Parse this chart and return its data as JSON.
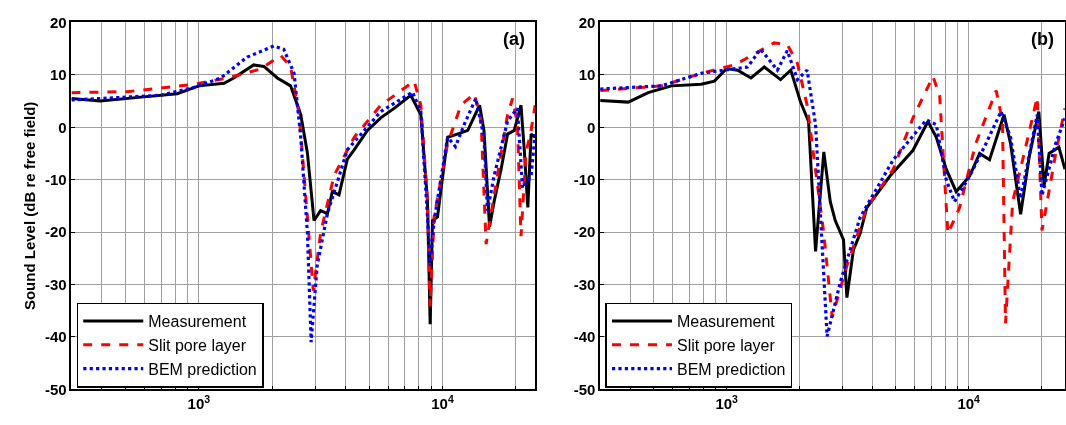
{
  "chart_data": [
    {
      "type": "line",
      "ylabel": "Sound Level (dB re free field)",
      "annotations": [
        "(a)"
      ],
      "xlim": [
        300,
        24000
      ],
      "log": "x",
      "ylim": [
        -50,
        20
      ],
      "yticks": [
        -50,
        -40,
        -30,
        -20,
        -10,
        0,
        10,
        20
      ],
      "xticks": [
        {
          "value": 400,
          "label": null
        },
        {
          "value": 500,
          "label": null
        },
        {
          "value": 600,
          "label": null
        },
        {
          "value": 700,
          "label": null
        },
        {
          "value": 800,
          "label": null
        },
        {
          "value": 900,
          "label": null
        },
        {
          "value": 1000,
          "label": "10$^{3}$"
        },
        {
          "value": 2000,
          "label": null
        },
        {
          "value": 3000,
          "label": null
        },
        {
          "value": 4000,
          "label": null
        },
        {
          "value": 5000,
          "label": null
        },
        {
          "value": 6000,
          "label": null
        },
        {
          "value": 7000,
          "label": null
        },
        {
          "value": 8000,
          "label": null
        },
        {
          "value": 9000,
          "label": null
        },
        {
          "value": 10000,
          "label": "10$^{4}$"
        },
        {
          "value": 20000,
          "label": null
        }
      ],
      "grid": true,
      "legend": "bottom left",
      "series": [
        {
          "name": "Measurement",
          "color": "#000000",
          "line_style": "solid",
          "x": [
            300,
            394,
            594,
            815,
            1000,
            1270,
            1390,
            1680,
            1850,
            2100,
            2380,
            2620,
            2790,
            2970,
            3160,
            3370,
            3530,
            3760,
            4070,
            4340,
            4920,
            5580,
            6330,
            7410,
            8150,
            8680,
            8900,
            9100,
            9540,
            10500,
            11500,
            12700,
            14200,
            14800,
            15600,
            16300,
            17400,
            18500,
            19700,
            21000,
            21700,
            22400,
            23100,
            24000
          ],
          "values": [
            5.5,
            5.0,
            5.8,
            6.4,
            7.9,
            8.4,
            9.4,
            11.9,
            11.6,
            9.4,
            7.9,
            2.4,
            -4.9,
            -17.8,
            -15.9,
            -16.5,
            -12.3,
            -12.9,
            -6.1,
            -4.3,
            -0.6,
            1.8,
            3.6,
            6.1,
            2.4,
            -14.1,
            -37.6,
            -17.8,
            -17.1,
            -1.9,
            -1.3,
            -0.6,
            4.2,
            -0.6,
            -19.0,
            -14.1,
            -8.0,
            -1.3,
            -0.6,
            4.2,
            -4.9,
            -15.3,
            -1.3,
            -1.9
          ]
        },
        {
          "name": "Slit pore layer",
          "color": "#ff0000",
          "line_style": "dashed",
          "x": [
            300,
            510,
            954,
            1310,
            1790,
            2170,
            2380,
            2580,
            2790,
            2950,
            3160,
            3590,
            4340,
            5580,
            7650,
            8150,
            8680,
            8900,
            9240,
            10500,
            11900,
            13500,
            14400,
            15100,
            16300,
            18500,
            19400,
            20300,
            21000,
            22000,
            23100,
            24000
          ],
          "values": [
            6.6,
            6.8,
            8.2,
            9.4,
            11.1,
            13.7,
            11.6,
            2.4,
            -17.1,
            -31.2,
            -20.2,
            -9.2,
            -1.9,
            4.2,
            8.8,
            4.2,
            -14.1,
            -34.2,
            -17.1,
            -3.1,
            4.2,
            6.4,
            1.2,
            -22.3,
            -12.9,
            2.4,
            5.5,
            0.6,
            -20.8,
            -4.9,
            -0.6,
            4.2
          ]
        },
        {
          "name": "BEM prediction",
          "color": "#0000ff",
          "line_style": "dotted",
          "x": [
            300,
            696,
            954,
            1230,
            1580,
            2030,
            2230,
            2460,
            2620,
            2790,
            2890,
            3060,
            3370,
            4070,
            5580,
            7530,
            8150,
            8680,
            8900,
            9240,
            10500,
            11300,
            12300,
            13700,
            14800,
            15300,
            16300,
            18500,
            20300,
            21300,
            23100,
            24000
          ],
          "values": [
            5.2,
            6.1,
            7.6,
            9.4,
            13.4,
            15.5,
            14.9,
            10.3,
            -1.9,
            -20.2,
            -41.0,
            -26.4,
            -16.5,
            -4.3,
            3.0,
            6.7,
            3.0,
            -17.1,
            -26.4,
            -17.8,
            -1.9,
            -3.7,
            0.6,
            5.5,
            -1.9,
            -15.9,
            -9.2,
            1.2,
            3.6,
            -11.6,
            -9.2,
            -1.3
          ]
        }
      ]
    },
    {
      "type": "line",
      "annotations": [
        "(b)"
      ],
      "xlim": [
        300,
        25000
      ],
      "log": "x",
      "ylim": [
        -50,
        20
      ],
      "yticks": [
        -50,
        -40,
        -30,
        -20,
        -10,
        0,
        10,
        20
      ],
      "xticks": [
        {
          "value": 400,
          "label": null
        },
        {
          "value": 500,
          "label": null
        },
        {
          "value": 600,
          "label": null
        },
        {
          "value": 700,
          "label": null
        },
        {
          "value": 800,
          "label": null
        },
        {
          "value": 900,
          "label": null
        },
        {
          "value": 1000,
          "label": "10$^{3}$"
        },
        {
          "value": 2000,
          "label": null
        },
        {
          "value": 3000,
          "label": null
        },
        {
          "value": 4000,
          "label": null
        },
        {
          "value": 5000,
          "label": null
        },
        {
          "value": 6000,
          "label": null
        },
        {
          "value": 7000,
          "label": null
        },
        {
          "value": 8000,
          "label": null
        },
        {
          "value": 9000,
          "label": null
        },
        {
          "value": 10000,
          "label": "10$^{4}$"
        },
        {
          "value": 20000,
          "label": null
        }
      ],
      "grid": true,
      "legend": "bottom left",
      "series": [
        {
          "name": "Measurement",
          "color": "#000000",
          "line_style": "solid",
          "x": [
            300,
            392,
            474,
            591,
            785,
            890,
            1000,
            1110,
            1260,
            1430,
            1670,
            1840,
            2020,
            2180,
            2330,
            2520,
            2680,
            2810,
            3040,
            3140,
            3340,
            3560,
            3790,
            4730,
            5890,
            6790,
            7350,
            8080,
            8880,
            10100,
            11100,
            12200,
            14000,
            14900,
            16400,
            17800,
            19500,
            20500,
            21500,
            23600,
            25000
          ],
          "values": [
            5.1,
            4.8,
            6.6,
            7.9,
            8.2,
            8.8,
            11.2,
            10.9,
            9.4,
            11.5,
            9.1,
            10.9,
            4.8,
            1.1,
            -23.7,
            -4.7,
            -14.2,
            -17.8,
            -21.5,
            -32.5,
            -23.4,
            -20.3,
            -15.4,
            -9.3,
            -4.4,
            1.1,
            -1.9,
            -8.0,
            -12.3,
            -9.3,
            -5.0,
            -6.2,
            2.4,
            -3.1,
            -16.6,
            -5.6,
            3.0,
            -11.1,
            -5.0,
            -3.8,
            -8.0
          ]
        },
        {
          "name": "Slit pore layer",
          "color": "#ff0000",
          "line_style": "dashed",
          "x": [
            300,
            538,
            785,
            1080,
            1570,
            1780,
            1960,
            2150,
            2520,
            2730,
            3140,
            3790,
            4880,
            5890,
            7120,
            7590,
            8210,
            9160,
            10700,
            13000,
            13800,
            14200,
            15200,
            17200,
            19200,
            20100,
            22900,
            25000
          ],
          "values": [
            7.0,
            7.9,
            10.3,
            11.9,
            16.1,
            15.8,
            12.2,
            4.2,
            -20.3,
            -36.2,
            -26.4,
            -15.4,
            -8.0,
            1.8,
            9.7,
            6.0,
            -20.3,
            -15.4,
            -3.1,
            7.0,
            1.1,
            -37.4,
            -14.2,
            -3.8,
            5.7,
            -19.7,
            -5.0,
            3.6
          ]
        },
        {
          "name": "BEM prediction",
          "color": "#0000ff",
          "line_style": "dotted",
          "x": [
            300,
            538,
            785,
            1220,
            1380,
            1620,
            1780,
            1960,
            2150,
            2330,
            2600,
            2950,
            3560,
            4880,
            6680,
            7350,
            8080,
            8740,
            10100,
            11800,
            13600,
            14900,
            16400,
            19200,
            20100,
            22900,
            25000
          ],
          "values": [
            7.3,
            7.9,
            10.3,
            11.5,
            14.9,
            10.9,
            14.6,
            9.1,
            10.9,
            0.5,
            -39.9,
            -29.5,
            -17.2,
            -6.2,
            1.4,
            0.5,
            -10.0,
            -14.2,
            -9.3,
            -3.1,
            3.0,
            -1.9,
            -13.6,
            2.4,
            -13.0,
            -3.1,
            1.7
          ]
        }
      ]
    }
  ]
}
